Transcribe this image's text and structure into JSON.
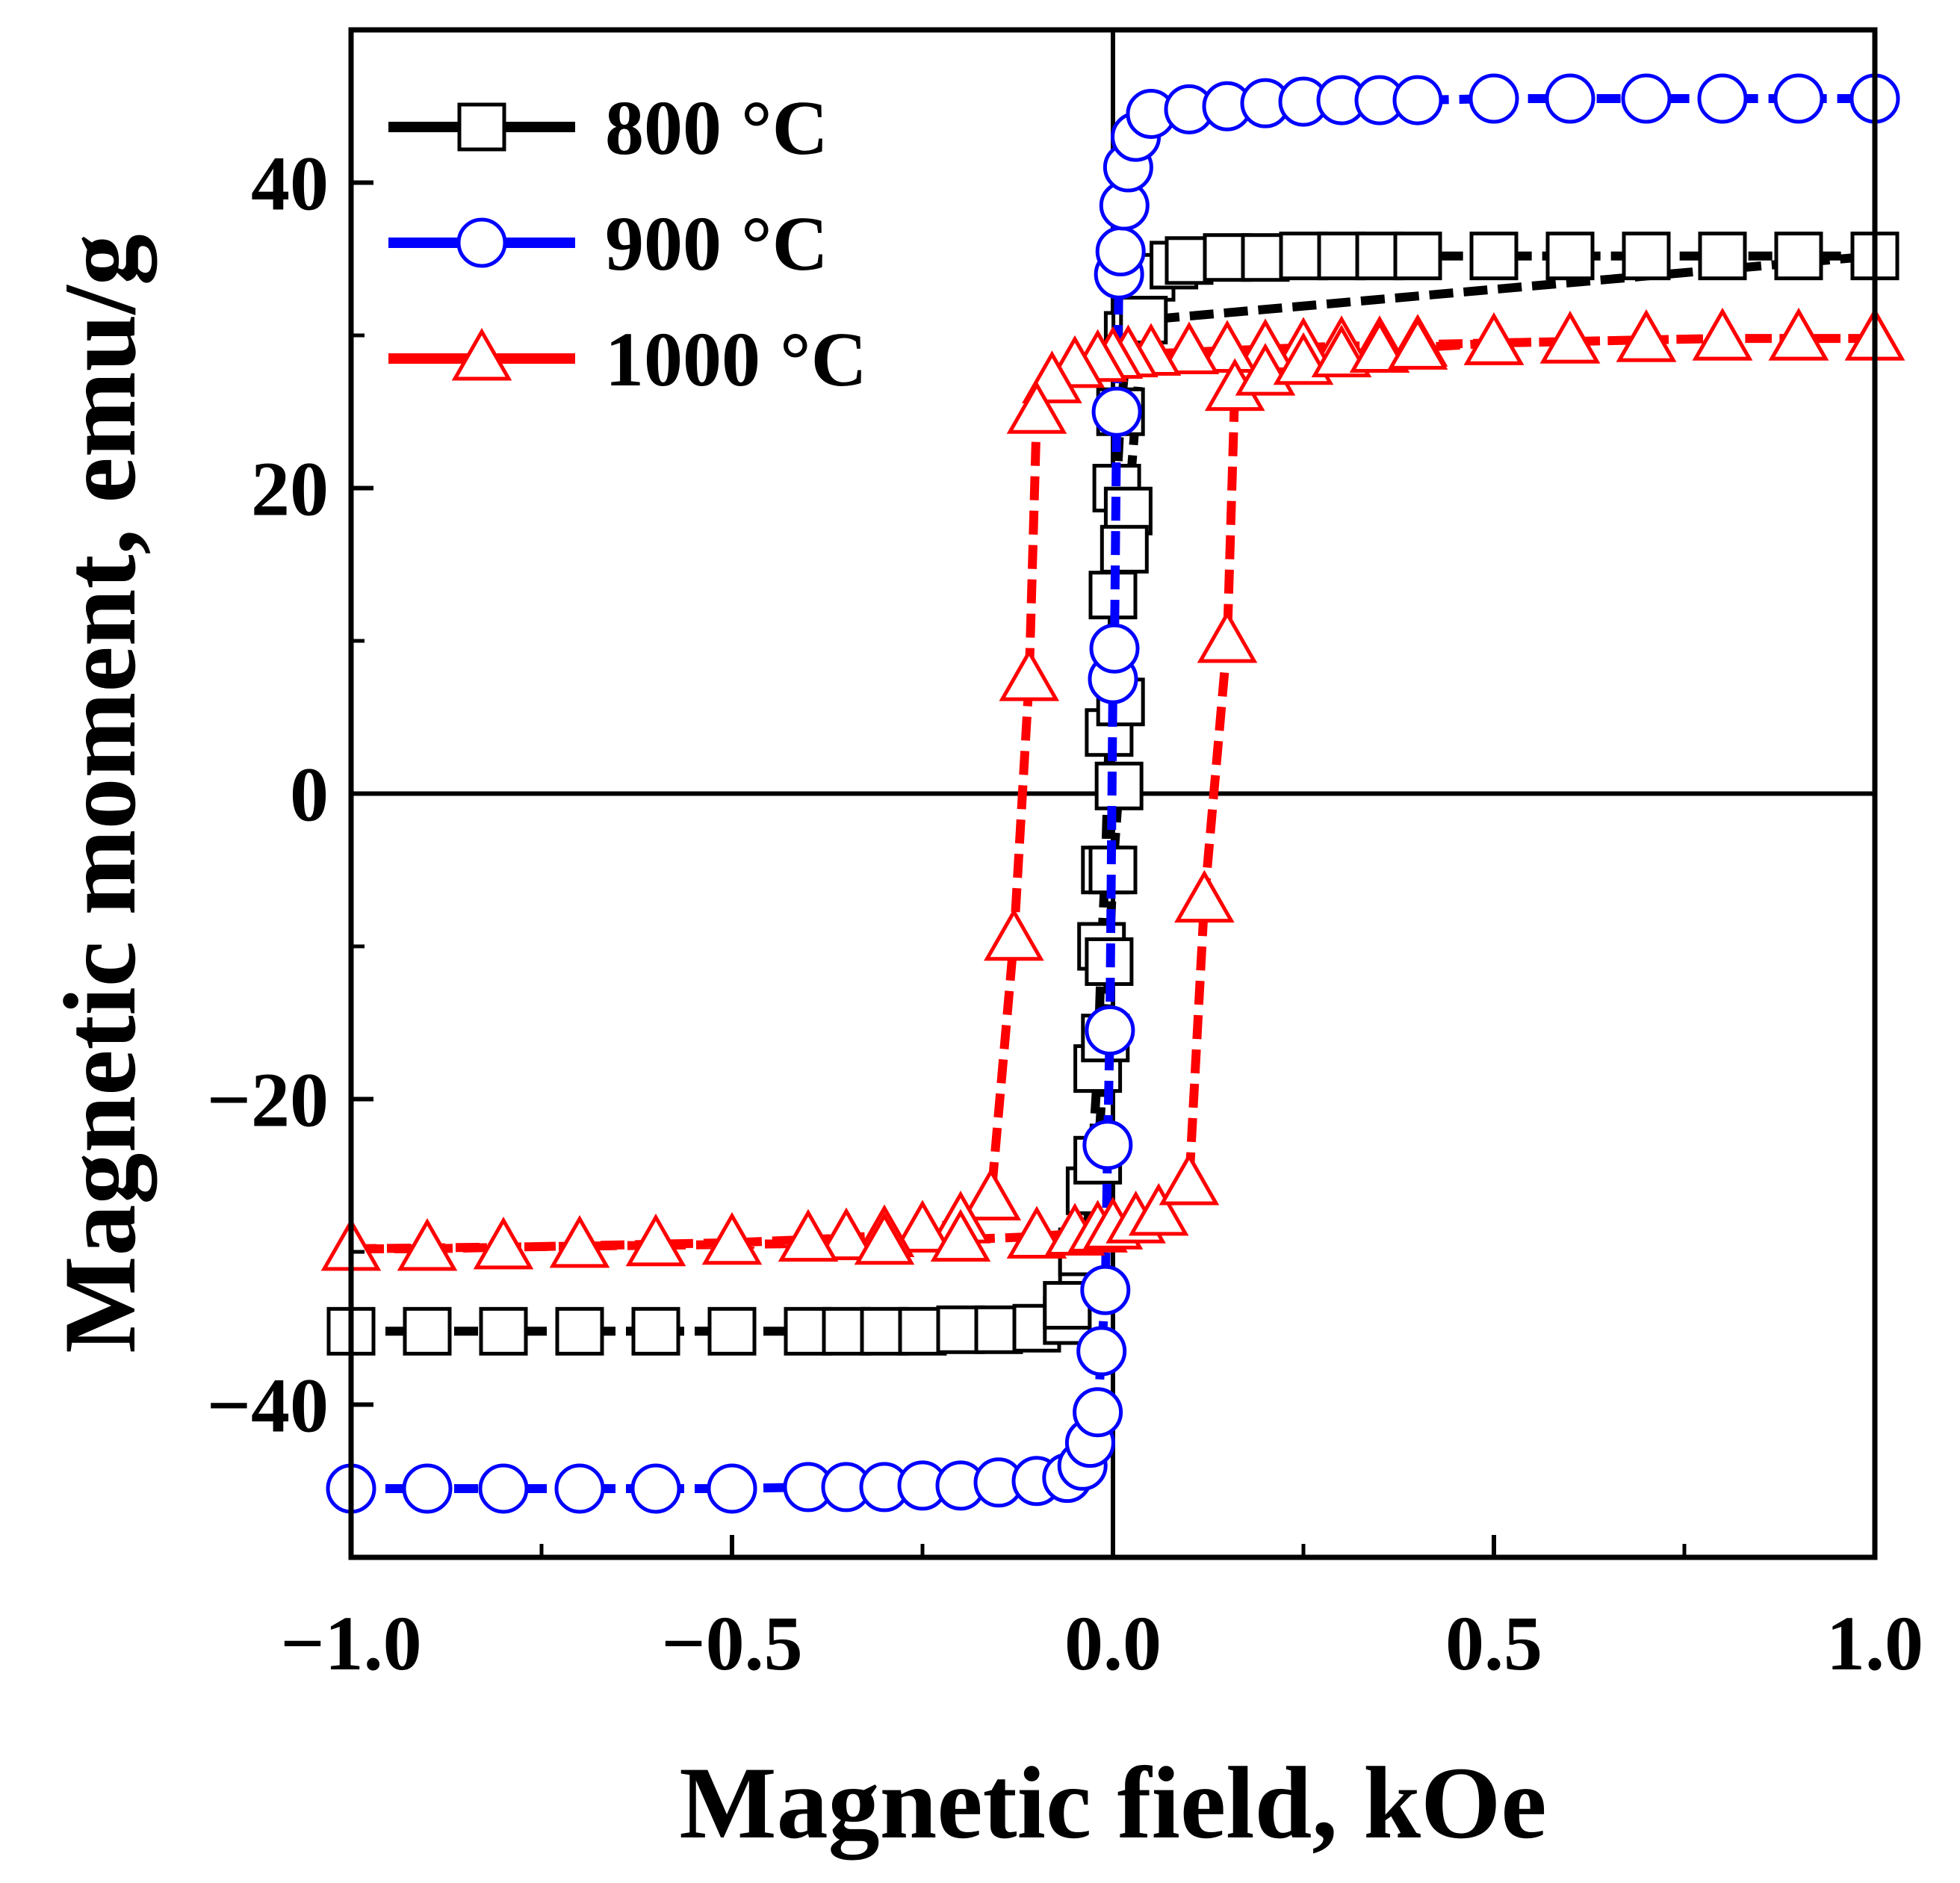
{
  "chart_data": {
    "type": "line",
    "title": "",
    "xlabel": "Magnetic field, kOe",
    "ylabel": "Magnetic moment, emu/g",
    "xlim": [
      -1.0,
      1.0
    ],
    "ylim": [
      -50,
      50
    ],
    "x_ticks": [
      -1.0,
      -0.5,
      0.0,
      0.5,
      1.0
    ],
    "x_tick_labels": [
      "−1.0",
      "−0.5",
      "0.0",
      "0.5",
      "1.0"
    ],
    "y_ticks": [
      -40,
      -20,
      0,
      20,
      40
    ],
    "y_tick_labels": [
      "−40",
      "−20",
      "0",
      "20",
      "40"
    ],
    "legend_position": "top-left",
    "grid": false,
    "zero_lines": true,
    "series": [
      {
        "name": "800 °C",
        "color": "#000000",
        "marker": "square",
        "Ms": 35,
        "Hc": 0.01,
        "points": [
          [
            -1.0,
            -35.2
          ],
          [
            -0.9,
            -35.2
          ],
          [
            -0.8,
            -35.2
          ],
          [
            -0.7,
            -35.2
          ],
          [
            -0.6,
            -35.2
          ],
          [
            -0.5,
            -35.2
          ],
          [
            -0.4,
            -35.2
          ],
          [
            -0.35,
            -35.2
          ],
          [
            -0.3,
            -35.2
          ],
          [
            -0.25,
            -35.2
          ],
          [
            -0.2,
            -35.1
          ],
          [
            -0.15,
            -35.1
          ],
          [
            -0.1,
            -35.0
          ],
          [
            -0.06,
            -34.5
          ],
          [
            -0.04,
            -32
          ],
          [
            -0.03,
            -26
          ],
          [
            -0.02,
            -18
          ],
          [
            -0.015,
            -10
          ],
          [
            -0.01,
            -5
          ],
          [
            -0.005,
            4
          ],
          [
            0.0,
            13
          ],
          [
            0.005,
            20
          ],
          [
            0.01,
            25
          ],
          [
            0.02,
            30
          ],
          [
            0.03,
            32
          ],
          [
            0.05,
            33.8
          ],
          [
            0.08,
            34.6
          ],
          [
            0.1,
            34.9
          ],
          [
            0.15,
            35.1
          ],
          [
            0.2,
            35.1
          ],
          [
            0.25,
            35.2
          ],
          [
            0.3,
            35.2
          ],
          [
            0.35,
            35.2
          ],
          [
            0.4,
            35.2
          ],
          [
            0.5,
            35.2
          ],
          [
            0.6,
            35.2
          ],
          [
            0.7,
            35.2
          ],
          [
            0.8,
            35.2
          ],
          [
            0.9,
            35.2
          ],
          [
            1.0,
            35.2
          ],
          [
            0.04,
            31
          ],
          [
            0.02,
            18.5
          ],
          [
            0.015,
            16
          ],
          [
            0.01,
            6
          ],
          [
            0.008,
            0.5
          ],
          [
            0.0,
            -5
          ],
          [
            -0.005,
            -11
          ],
          [
            -0.01,
            -16
          ],
          [
            -0.02,
            -24
          ],
          [
            -0.04,
            -30
          ],
          [
            -0.06,
            -33.5
          ]
        ]
      },
      {
        "name": "900 °C",
        "color": "#0000ff",
        "marker": "circle",
        "Ms": 45.5,
        "Hc": 0.005,
        "points": [
          [
            -1.0,
            -45.5
          ],
          [
            -0.9,
            -45.5
          ],
          [
            -0.8,
            -45.5
          ],
          [
            -0.7,
            -45.5
          ],
          [
            -0.6,
            -45.5
          ],
          [
            -0.5,
            -45.5
          ],
          [
            -0.4,
            -45.4
          ],
          [
            -0.35,
            -45.4
          ],
          [
            -0.3,
            -45.4
          ],
          [
            -0.25,
            -45.3
          ],
          [
            -0.2,
            -45.3
          ],
          [
            -0.15,
            -45.1
          ],
          [
            -0.1,
            -45.0
          ],
          [
            -0.06,
            -44.8
          ],
          [
            -0.04,
            -44
          ],
          [
            -0.03,
            -42.5
          ],
          [
            -0.02,
            -40.5
          ],
          [
            -0.015,
            -36.5
          ],
          [
            -0.01,
            -32.5
          ],
          [
            -0.007,
            -23
          ],
          [
            -0.004,
            -15.5
          ],
          [
            0.0,
            7.5
          ],
          [
            0.002,
            9.5
          ],
          [
            0.005,
            25
          ],
          [
            0.008,
            34
          ],
          [
            0.01,
            35.5
          ],
          [
            0.015,
            38.5
          ],
          [
            0.02,
            41
          ],
          [
            0.03,
            43
          ],
          [
            0.05,
            44.5
          ],
          [
            0.1,
            44.8
          ],
          [
            0.15,
            45.0
          ],
          [
            0.2,
            45.2
          ],
          [
            0.25,
            45.3
          ],
          [
            0.3,
            45.4
          ],
          [
            0.35,
            45.4
          ],
          [
            0.4,
            45.4
          ],
          [
            0.5,
            45.5
          ],
          [
            0.6,
            45.5
          ],
          [
            0.7,
            45.5
          ],
          [
            0.8,
            45.5
          ],
          [
            0.9,
            45.5
          ],
          [
            1.0,
            45.5
          ]
        ]
      },
      {
        "name": "1000 °C",
        "color": "#ff0000",
        "marker": "triangle",
        "Ms": 29.5,
        "Hc": 0.13,
        "points": [
          [
            1.0,
            29.8
          ],
          [
            0.9,
            29.8
          ],
          [
            0.8,
            29.8
          ],
          [
            0.7,
            29.7
          ],
          [
            0.6,
            29.6
          ],
          [
            0.5,
            29.5
          ],
          [
            0.4,
            29.4
          ],
          [
            0.35,
            29.3
          ],
          [
            0.3,
            29.3
          ],
          [
            0.25,
            29.2
          ],
          [
            0.2,
            29.1
          ],
          [
            0.15,
            29.0
          ],
          [
            0.1,
            28.9
          ],
          [
            0.05,
            28.8
          ],
          [
            0.02,
            28.7
          ],
          [
            0.0,
            28.6
          ],
          [
            -0.02,
            28.4
          ],
          [
            -0.05,
            28.0
          ],
          [
            -0.08,
            27.0
          ],
          [
            -0.1,
            25.0
          ],
          [
            -0.11,
            7.5
          ],
          [
            -0.13,
            -9.5
          ],
          [
            -0.16,
            -26.5
          ],
          [
            -0.2,
            -28.0
          ],
          [
            -0.25,
            -28.6
          ],
          [
            -0.3,
            -28.9
          ],
          [
            -0.35,
            -29.1
          ],
          [
            -0.4,
            -29.2
          ],
          [
            -0.5,
            -29.4
          ],
          [
            -0.6,
            -29.5
          ],
          [
            -0.7,
            -29.6
          ],
          [
            -0.8,
            -29.7
          ],
          [
            -0.9,
            -29.8
          ],
          [
            -1.0,
            -29.8
          ],
          [
            -0.3,
            -29.4
          ],
          [
            -0.2,
            -29.2
          ],
          [
            -0.1,
            -29.0
          ],
          [
            -0.05,
            -28.8
          ],
          [
            -0.02,
            -28.6
          ],
          [
            0.0,
            -28.4
          ],
          [
            0.03,
            -28.0
          ],
          [
            0.06,
            -27.5
          ],
          [
            0.1,
            -25.5
          ],
          [
            0.12,
            -7.0
          ],
          [
            0.15,
            10.0
          ],
          [
            0.16,
            26.5
          ],
          [
            0.2,
            27.5
          ],
          [
            0.25,
            28.2
          ],
          [
            0.3,
            28.7
          ],
          [
            0.35,
            29.0
          ],
          [
            0.4,
            29.2
          ],
          [
            0.5,
            29.5
          ],
          [
            0.6,
            29.6
          ],
          [
            0.7,
            29.7
          ],
          [
            0.8,
            29.8
          ],
          [
            0.9,
            29.8
          ],
          [
            1.0,
            29.8
          ]
        ]
      }
    ]
  }
}
